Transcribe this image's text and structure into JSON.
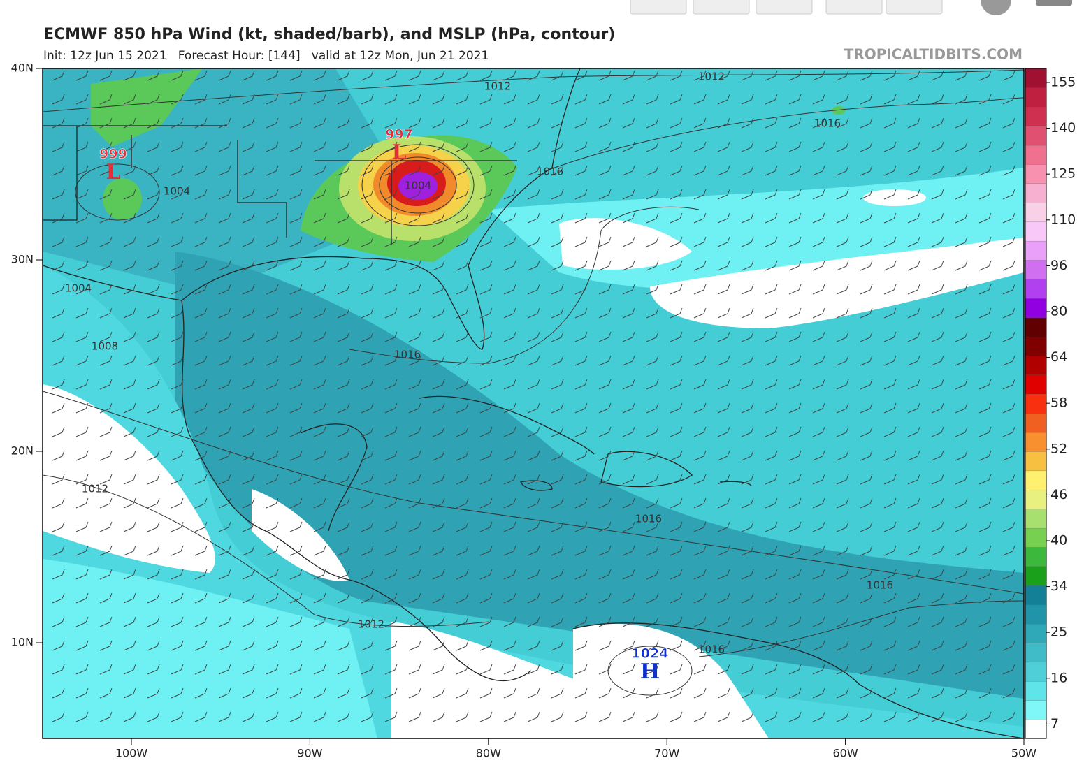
{
  "header": {
    "title": "ECMWF 850 hPa Wind (kt, shaded/barb), and MSLP (hPa, contour)",
    "subtitle": "Init: 12z Jun 15 2021   Forecast Hour: [144]   valid at 12z Mon, Jun 21 2021",
    "watermark": "TROPICALTIDBITS.COM"
  },
  "axes": {
    "lat_labels": [
      "40N",
      "30N",
      "20N",
      "10N"
    ],
    "lon_labels": [
      "100W",
      "90W",
      "80W",
      "70W",
      "60W",
      "50W"
    ]
  },
  "colorbar": {
    "labels": [
      "155",
      "140",
      "125",
      "110",
      "96",
      "80",
      "64",
      "58",
      "52",
      "46",
      "40",
      "34",
      "25",
      "16",
      "7"
    ]
  },
  "map": {
    "pressure_centers": [
      {
        "value": "997",
        "letter": "L"
      },
      {
        "value": "999",
        "letter": "L"
      },
      {
        "value": "1024",
        "letter": "H"
      }
    ],
    "contour_labels": [
      "1012",
      "1012",
      "1016",
      "1016",
      "1004",
      "1004",
      "1004",
      "1008",
      "1016",
      "1012",
      "1016",
      "1016",
      "1012",
      "1016"
    ]
  }
}
